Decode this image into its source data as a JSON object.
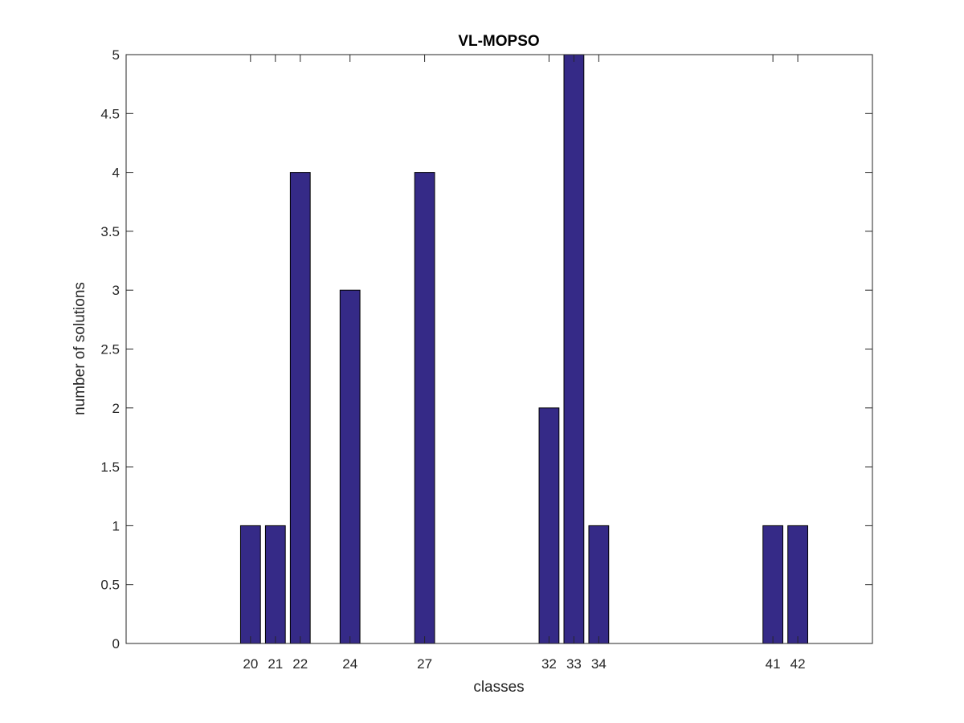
{
  "chart_data": {
    "type": "bar",
    "title": "VL-MOPSO",
    "xlabel": "classes",
    "ylabel": "number of solutions",
    "x": [
      20,
      21,
      22,
      24,
      27,
      32,
      33,
      34,
      41,
      42
    ],
    "categories": [
      "20",
      "21",
      "22",
      "24",
      "27",
      "32",
      "33",
      "34",
      "41",
      "42"
    ],
    "values": [
      1,
      1,
      4,
      3,
      4,
      2,
      5,
      1,
      1,
      1
    ],
    "xlim": [
      15,
      45
    ],
    "ylim": [
      0,
      5
    ],
    "yticks": [
      "0",
      "0.5",
      "1",
      "1.5",
      "2",
      "2.5",
      "3",
      "3.5",
      "4",
      "4.5",
      "5"
    ],
    "grid": false,
    "bar_color": "#352a87",
    "bar_edge_color": "#000000"
  }
}
